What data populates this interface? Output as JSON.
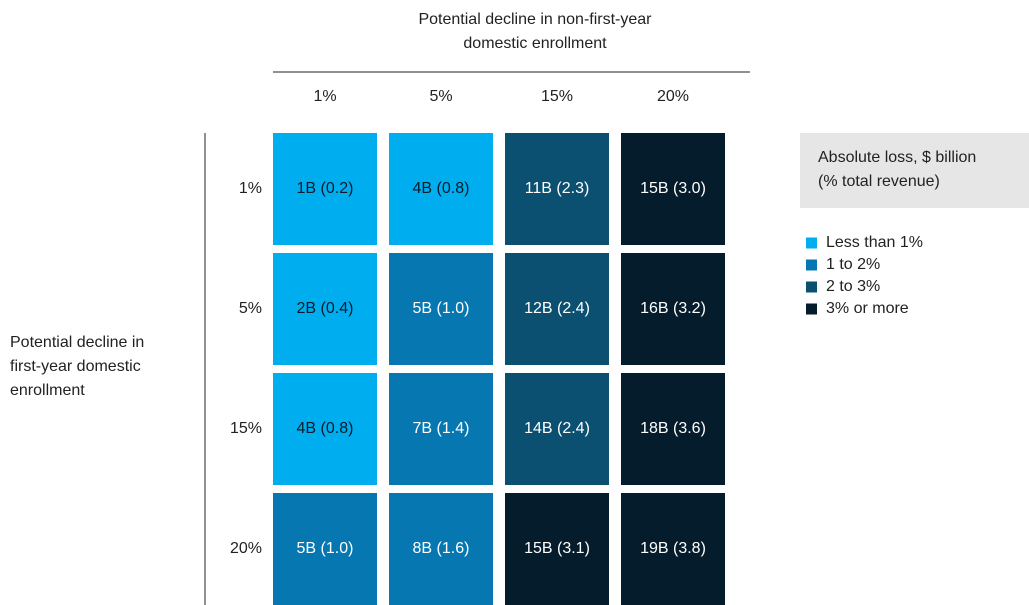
{
  "chart_data": {
    "type": "heatmap",
    "x_label": [
      "Potential decline in non-first-year",
      "domestic enrollment"
    ],
    "y_label": [
      "Potential decline in",
      "first-year domestic",
      "enrollment"
    ],
    "x_categories": [
      "1%",
      "5%",
      "15%",
      "20%"
    ],
    "y_categories": [
      "1%",
      "5%",
      "15%",
      "20%"
    ],
    "loss": [
      [
        1,
        4,
        11,
        15
      ],
      [
        2,
        5,
        12,
        16
      ],
      [
        4,
        7,
        14,
        18
      ],
      [
        5,
        8,
        15,
        19
      ]
    ],
    "share": [
      [
        0.2,
        0.8,
        2.3,
        3.0
      ],
      [
        0.4,
        1.0,
        2.4,
        3.2
      ],
      [
        0.8,
        1.4,
        2.4,
        3.6
      ],
      [
        1.0,
        1.6,
        3.1,
        3.8
      ]
    ],
    "value_labels": [
      [
        "1B (0.2)",
        "4B (0.8)",
        "11B (2.3)",
        "15B (3.0)"
      ],
      [
        "2B (0.4)",
        "5B (1.0)",
        "12B (2.4)",
        "16B (3.2)"
      ],
      [
        "4B (0.8)",
        "7B (1.4)",
        "14B (2.4)",
        "18B (3.6)"
      ],
      [
        "5B (1.0)",
        "8B (1.6)",
        "15B (3.1)",
        "19B (3.8)"
      ]
    ],
    "cell_colors": [
      [
        "#00aeef",
        "#00aeef",
        "#0b4f71",
        "#051c2c"
      ],
      [
        "#00aeef",
        "#0677b1",
        "#0b4f71",
        "#051c2c"
      ],
      [
        "#00aeef",
        "#0677b1",
        "#0b4f71",
        "#051c2c"
      ],
      [
        "#0677b1",
        "#0677b1",
        "#051c2c",
        "#051c2c"
      ]
    ],
    "legend_title": [
      "Absolute loss, $ billion",
      "(% total revenue)"
    ],
    "legend": [
      {
        "name": "Less than 1%",
        "color": "#00aeef"
      },
      {
        "name": "1 to 2%",
        "color": "#0677b1"
      },
      {
        "name": "2 to 3%",
        "color": "#0b4f71"
      },
      {
        "name": "3% or more",
        "color": "#051c2c"
      }
    ]
  }
}
